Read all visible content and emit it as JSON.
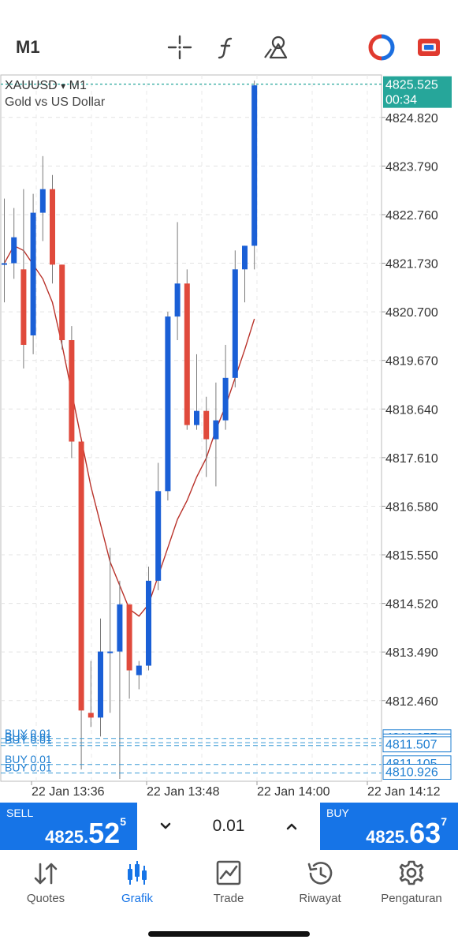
{
  "toolbar": {
    "timeframe": "M1",
    "icons": [
      "crosshair-icon",
      "function-icon",
      "objects-icon",
      "one-click-trading-icon",
      "signals-icon"
    ]
  },
  "chart": {
    "symbol": "XAUUSD",
    "symbol_dropdown": "▾",
    "timeframe": "M1",
    "description": "Gold vs US Dollar",
    "current_price": "4825.525",
    "countdown": "00:34",
    "bid_line_color": "#26a69a",
    "bull_color": "#1a5fd6",
    "bear_color": "#e04a3c",
    "ma_color": "#b9322a",
    "order_lines": [
      {
        "label": "BUY 0.01",
        "price": "4811.657"
      },
      {
        "label": "BUY 0.01",
        "price": "4811.567"
      },
      {
        "label": "BUY 0.01",
        "price": "4811.507"
      },
      {
        "label": "BUY 0.01",
        "price": "4811.105"
      },
      {
        "label": "BUY 0.01",
        "price": "4810.926"
      }
    ]
  },
  "chart_data": {
    "type": "candlestick",
    "title": "XAUUSD, M1",
    "y_ticks": [
      "4824.820",
      "4823.790",
      "4822.760",
      "4821.730",
      "4820.700",
      "4819.670",
      "4818.640",
      "4817.610",
      "4816.580",
      "4815.550",
      "4814.520",
      "4813.490",
      "4812.460"
    ],
    "x_ticks": [
      "22 Jan 13:36",
      "22 Jan 13:48",
      "22 Jan 14:00",
      "22 Jan 14:12"
    ],
    "ylim": [
      4810.75,
      4825.72
    ],
    "candles": [
      {
        "o": 4821.73,
        "h": 4823.1,
        "l": 4820.9,
        "c": 4821.73
      },
      {
        "o": 4821.73,
        "h": 4822.9,
        "l": 4821.4,
        "c": 4822.28
      },
      {
        "o": 4821.6,
        "h": 4823.3,
        "l": 4819.5,
        "c": 4820.0
      },
      {
        "o": 4820.2,
        "h": 4823.2,
        "l": 4819.8,
        "c": 4822.8
      },
      {
        "o": 4822.8,
        "h": 4824.0,
        "l": 4822.2,
        "c": 4823.3
      },
      {
        "o": 4823.3,
        "h": 4823.6,
        "l": 4821.3,
        "c": 4821.7
      },
      {
        "o": 4821.7,
        "h": 4821.7,
        "l": 4819.9,
        "c": 4820.1
      },
      {
        "o": 4820.1,
        "h": 4820.4,
        "l": 4817.6,
        "c": 4817.95
      },
      {
        "o": 4817.95,
        "h": 4817.95,
        "l": 4811.0,
        "c": 4812.25
      },
      {
        "o": 4812.2,
        "h": 4813.3,
        "l": 4811.9,
        "c": 4812.1
      },
      {
        "o": 4812.1,
        "h": 4814.2,
        "l": 4811.7,
        "c": 4813.5
      },
      {
        "o": 4813.5,
        "h": 4815.7,
        "l": 4812.2,
        "c": 4813.5
      },
      {
        "o": 4813.5,
        "h": 4815.0,
        "l": 4810.8,
        "c": 4814.5
      },
      {
        "o": 4814.5,
        "h": 4814.5,
        "l": 4812.5,
        "c": 4813.1
      },
      {
        "o": 4813.0,
        "h": 4813.3,
        "l": 4812.7,
        "c": 4813.2
      },
      {
        "o": 4813.2,
        "h": 4815.3,
        "l": 4813.1,
        "c": 4815.0
      },
      {
        "o": 4815.0,
        "h": 4817.5,
        "l": 4814.8,
        "c": 4816.9
      },
      {
        "o": 4816.9,
        "h": 4820.7,
        "l": 4816.7,
        "c": 4820.6
      },
      {
        "o": 4820.6,
        "h": 4822.6,
        "l": 4820.1,
        "c": 4821.3
      },
      {
        "o": 4821.3,
        "h": 4821.6,
        "l": 4818.2,
        "c": 4818.3
      },
      {
        "o": 4818.3,
        "h": 4819.8,
        "l": 4818.2,
        "c": 4818.6
      },
      {
        "o": 4818.6,
        "h": 4818.9,
        "l": 4817.2,
        "c": 4818.0
      },
      {
        "o": 4818.0,
        "h": 4819.2,
        "l": 4817.0,
        "c": 4818.4
      },
      {
        "o": 4818.4,
        "h": 4820.0,
        "l": 4818.2,
        "c": 4819.3
      },
      {
        "o": 4819.3,
        "h": 4822.0,
        "l": 4819.1,
        "c": 4821.6
      },
      {
        "o": 4821.6,
        "h": 4822.1,
        "l": 4820.9,
        "c": 4822.1
      },
      {
        "o": 4822.1,
        "h": 4825.6,
        "l": 4821.6,
        "c": 4825.5
      }
    ],
    "ma": [
      4821.73,
      4822.1,
      4822.0,
      4821.7,
      4821.4,
      4820.9,
      4820.0,
      4819.0,
      4818.0,
      4817.0,
      4816.2,
      4815.4,
      4814.9,
      4814.4,
      4814.25,
      4814.5,
      4815.1,
      4815.7,
      4816.3,
      4816.7,
      4817.2,
      4817.6,
      4818.2,
      4818.7,
      4819.3,
      4819.9,
      4820.55
    ]
  },
  "trade": {
    "sell_label": "SELL",
    "sell_price_main": "4825.",
    "sell_price_big": "52",
    "sell_price_sup": "5",
    "buy_label": "BUY",
    "buy_price_main": "4825.",
    "buy_price_big": "63",
    "buy_price_sup": "7",
    "volume": "0.01"
  },
  "nav": {
    "items": [
      {
        "label": "Quotes",
        "icon": "quotes-icon"
      },
      {
        "label": "Grafik",
        "icon": "chart-icon",
        "active": true
      },
      {
        "label": "Trade",
        "icon": "trade-icon"
      },
      {
        "label": "Riwayat",
        "icon": "history-icon"
      },
      {
        "label": "Pengaturan",
        "icon": "settings-icon"
      }
    ]
  }
}
